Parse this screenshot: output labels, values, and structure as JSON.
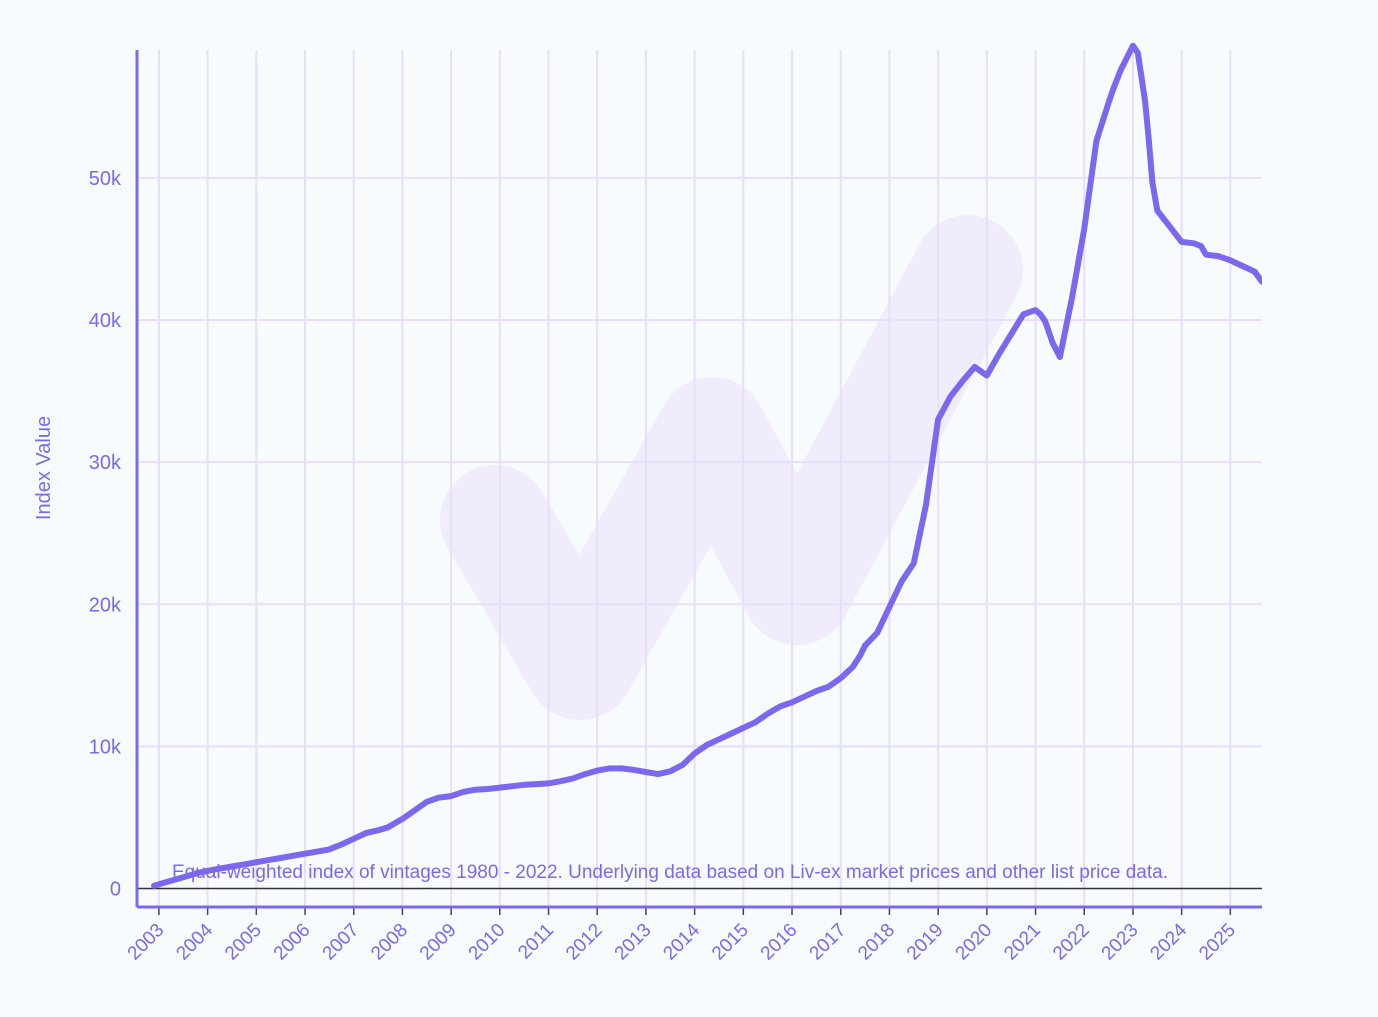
{
  "chart_data": {
    "type": "line",
    "title": "",
    "xlabel": "",
    "ylabel": "Index Value",
    "annotation": "Equal-weighted index of vintages 1980 - 2022. Underlying data based on Liv-ex market prices and other list price data.",
    "x_tick_labels": [
      "2003",
      "2004",
      "2005",
      "2006",
      "2007",
      "2008",
      "2009",
      "2010",
      "2011",
      "2012",
      "2013",
      "2014",
      "2015",
      "2016",
      "2017",
      "2018",
      "2019",
      "2020",
      "2021",
      "2022",
      "2023",
      "2024",
      "2025"
    ],
    "y_tick_values": [
      0,
      10000,
      20000,
      30000,
      40000,
      50000
    ],
    "y_tick_labels": [
      "0",
      "10k",
      "20k",
      "30k",
      "40k",
      "50k"
    ],
    "xlim": [
      2002.55,
      2025.65
    ],
    "ylim": [
      -1300,
      59000
    ],
    "grid": true,
    "legend": "none",
    "colors": {
      "line": "#7b68ee",
      "grid": "#e6defa",
      "axis": "#7b68ee",
      "text": "#7b68ee",
      "zero_line": "#333333",
      "watermark": "#f1ecfc",
      "background": "#f8fbfd"
    },
    "series": [
      {
        "x": [
          2002.9,
          2003.0,
          2003.25,
          2003.5,
          2003.75,
          2004.0,
          2004.25,
          2004.5,
          2004.75,
          2005.0,
          2005.25,
          2005.5,
          2005.75,
          2006.0,
          2006.25,
          2006.5,
          2006.6,
          2006.75,
          2007.0,
          2007.25,
          2007.5,
          2007.7,
          2008.0,
          2008.25,
          2008.5,
          2008.75,
          2009.0,
          2009.25,
          2009.5,
          2009.75,
          2010.0,
          2010.25,
          2010.5,
          2010.75,
          2011.0,
          2011.25,
          2011.5,
          2011.75,
          2012.0,
          2012.25,
          2012.5,
          2012.75,
          2013.0,
          2013.25,
          2013.5,
          2013.75,
          2014.0,
          2014.25,
          2014.5,
          2014.75,
          2015.0,
          2015.25,
          2015.5,
          2015.75,
          2016.0,
          2016.25,
          2016.5,
          2016.75,
          2017.0,
          2017.25,
          2017.4,
          2017.5,
          2017.75,
          2018.0,
          2018.25,
          2018.5,
          2018.75,
          2019.0,
          2019.25,
          2019.5,
          2019.75,
          2020.0,
          2020.25,
          2020.5,
          2020.75,
          2021.0,
          2021.1,
          2021.2,
          2021.35,
          2021.5,
          2021.75,
          2022.0,
          2022.25,
          2022.5,
          2022.6,
          2022.75,
          2023.0,
          2023.1,
          2023.25,
          2023.32,
          2023.4,
          2023.5,
          2023.75,
          2024.0,
          2024.25,
          2024.4,
          2024.5,
          2024.75,
          2025.0,
          2025.25,
          2025.5,
          2025.65
        ],
        "values": [
          200,
          300,
          550,
          800,
          1050,
          1250,
          1400,
          1550,
          1700,
          1850,
          2000,
          2150,
          2300,
          2450,
          2600,
          2750,
          2900,
          3100,
          3500,
          3900,
          4100,
          4300,
          4900,
          5500,
          6100,
          6400,
          6500,
          6800,
          6950,
          7000,
          7100,
          7200,
          7300,
          7350,
          7400,
          7550,
          7750,
          8050,
          8300,
          8450,
          8450,
          8350,
          8200,
          8050,
          8250,
          8700,
          9500,
          10100,
          10500,
          10900,
          11300,
          11700,
          12300,
          12800,
          13100,
          13500,
          13900,
          14200,
          14800,
          15600,
          16400,
          17100,
          18000,
          19800,
          21600,
          22900,
          27000,
          33000,
          34600,
          35700,
          36700,
          36100,
          37600,
          39000,
          40400,
          40700,
          40400,
          39900,
          38400,
          37400,
          41600,
          46400,
          52600,
          55300,
          56300,
          57600,
          59300,
          58800,
          55400,
          52900,
          49700,
          47700,
          46600,
          45500,
          45400,
          45200,
          44600,
          44500,
          44200,
          43800,
          43400,
          42700
        ]
      }
    ]
  }
}
